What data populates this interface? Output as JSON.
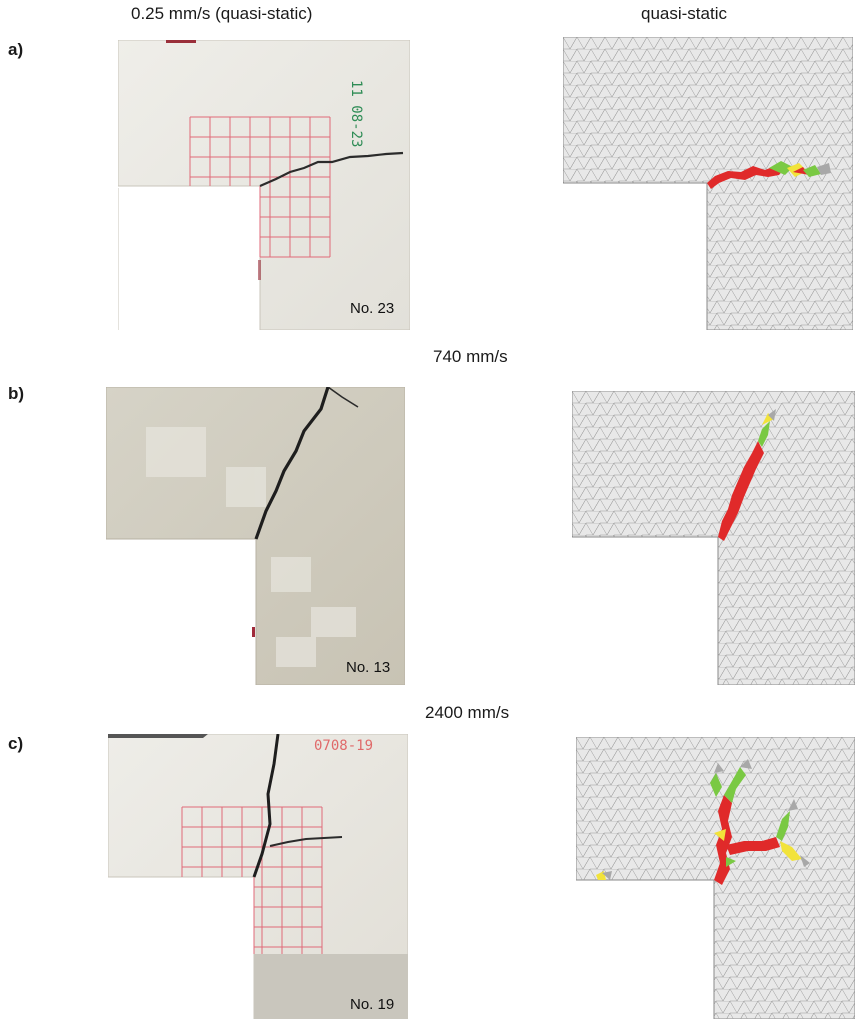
{
  "headers": {
    "left": "0.25 mm/s (quasi-static)",
    "right": "quasi-static",
    "row_b": "740 mm/s",
    "row_c": "2400 mm/s"
  },
  "rows": [
    {
      "label": "a)",
      "specimen": "No. 23",
      "marking": "11 08-23"
    },
    {
      "label": "b)",
      "specimen": "No. 13",
      "marking": ""
    },
    {
      "label": "c)",
      "specimen": "No. 19",
      "marking": "0708-19"
    }
  ],
  "colors": {
    "concrete_light": "#e9e7e2",
    "concrete_dark": "#cfcabd",
    "grid_red": "#e06a78",
    "crack": "#2b2b2b",
    "mesh_fill": "#e8e8e8",
    "mesh_line": "#9a9a9a",
    "damage_red": "#e02a2a",
    "damage_green": "#7ac943",
    "damage_yellow": "#f2e33a",
    "damage_grey": "#a8a8a8"
  }
}
